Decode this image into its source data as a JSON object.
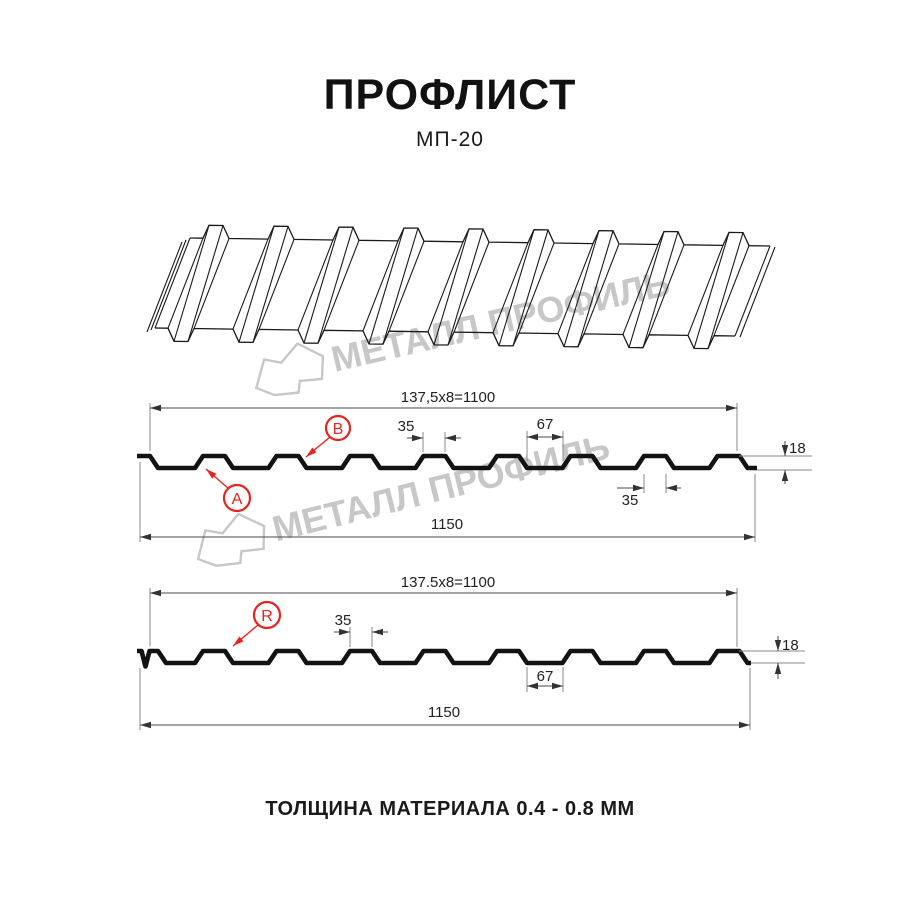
{
  "header": {
    "title": "ПРОФЛИСТ",
    "subtitle": "МП-20"
  },
  "watermark": {
    "text": "МЕТАЛЛ ПРОФИЛЬ",
    "logo": "metal-profile-logo"
  },
  "footer": {
    "note": "ТОЛЩИНА МАТЕРИАЛА 0.4 - 0.8 ММ"
  },
  "colors": {
    "accent": "#e8231e",
    "profile_line": "#121212",
    "dim_line": "#4a4a4a",
    "ext_line": "#8a8a8a",
    "watermark": "#c7c7c7"
  },
  "section1": {
    "dim_working": "137,5x8=1100",
    "dim_total": "1150",
    "dim_rib_top": "35",
    "dim_valley": "67",
    "dim_rib_top2": "35",
    "dim_height": "18",
    "callout_a": "A",
    "callout_b": "B"
  },
  "section2": {
    "dim_working": "137.5x8=1100",
    "dim_total": "1150",
    "dim_rib_top": "35",
    "dim_valley": "67",
    "dim_height": "18",
    "callout_r": "R"
  }
}
